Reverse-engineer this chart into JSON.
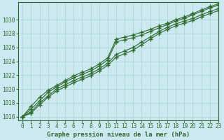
{
  "title": "Graphe pression niveau de la mer (hPa)",
  "background_color": "#cce8f0",
  "line_color": "#2d6a2d",
  "grid_color": "#aad4cc",
  "xlim": [
    -0.5,
    23
  ],
  "ylim": [
    1015.5,
    1032.5
  ],
  "yticks": [
    1016,
    1018,
    1020,
    1022,
    1024,
    1026,
    1028,
    1030
  ],
  "xticks": [
    0,
    1,
    2,
    3,
    4,
    5,
    6,
    7,
    8,
    9,
    10,
    11,
    12,
    13,
    14,
    15,
    16,
    17,
    18,
    19,
    20,
    21,
    22,
    23
  ],
  "series": [
    [
      1016.0,
      1017.5,
      1018.8,
      1019.8,
      1020.5,
      1021.2,
      1021.9,
      1022.4,
      1022.9,
      1023.6,
      1024.5,
      1027.2,
      1027.5,
      1027.8,
      1028.2,
      1028.6,
      1029.1,
      1029.5,
      1030.0,
      1030.4,
      1030.9,
      1031.4,
      1031.9,
      1032.3
    ],
    [
      1016.0,
      1017.1,
      1018.3,
      1019.5,
      1020.3,
      1021.0,
      1021.6,
      1022.1,
      1022.6,
      1023.3,
      1024.2,
      1026.8,
      1027.1,
      1027.4,
      1027.8,
      1028.3,
      1028.8,
      1029.3,
      1029.8,
      1030.2,
      1030.7,
      1031.2,
      1031.7,
      1032.1
    ],
    [
      1016.0,
      1016.7,
      1018.0,
      1019.0,
      1020.0,
      1020.6,
      1021.2,
      1021.7,
      1022.2,
      1022.9,
      1023.7,
      1025.0,
      1025.5,
      1026.0,
      1026.8,
      1027.5,
      1028.3,
      1028.9,
      1029.4,
      1029.8,
      1030.2,
      1030.7,
      1031.2,
      1031.6
    ],
    [
      1016.0,
      1016.5,
      1017.7,
      1018.8,
      1019.7,
      1020.3,
      1020.9,
      1021.4,
      1021.9,
      1022.6,
      1023.4,
      1024.6,
      1025.1,
      1025.6,
      1026.4,
      1027.2,
      1028.0,
      1028.6,
      1029.1,
      1029.5,
      1029.9,
      1030.4,
      1030.9,
      1031.3
    ]
  ],
  "marker": "+",
  "markersize": 4,
  "markeredgewidth": 1.0,
  "linewidth": 0.8,
  "title_fontsize": 6.5,
  "tick_fontsize": 5.5
}
